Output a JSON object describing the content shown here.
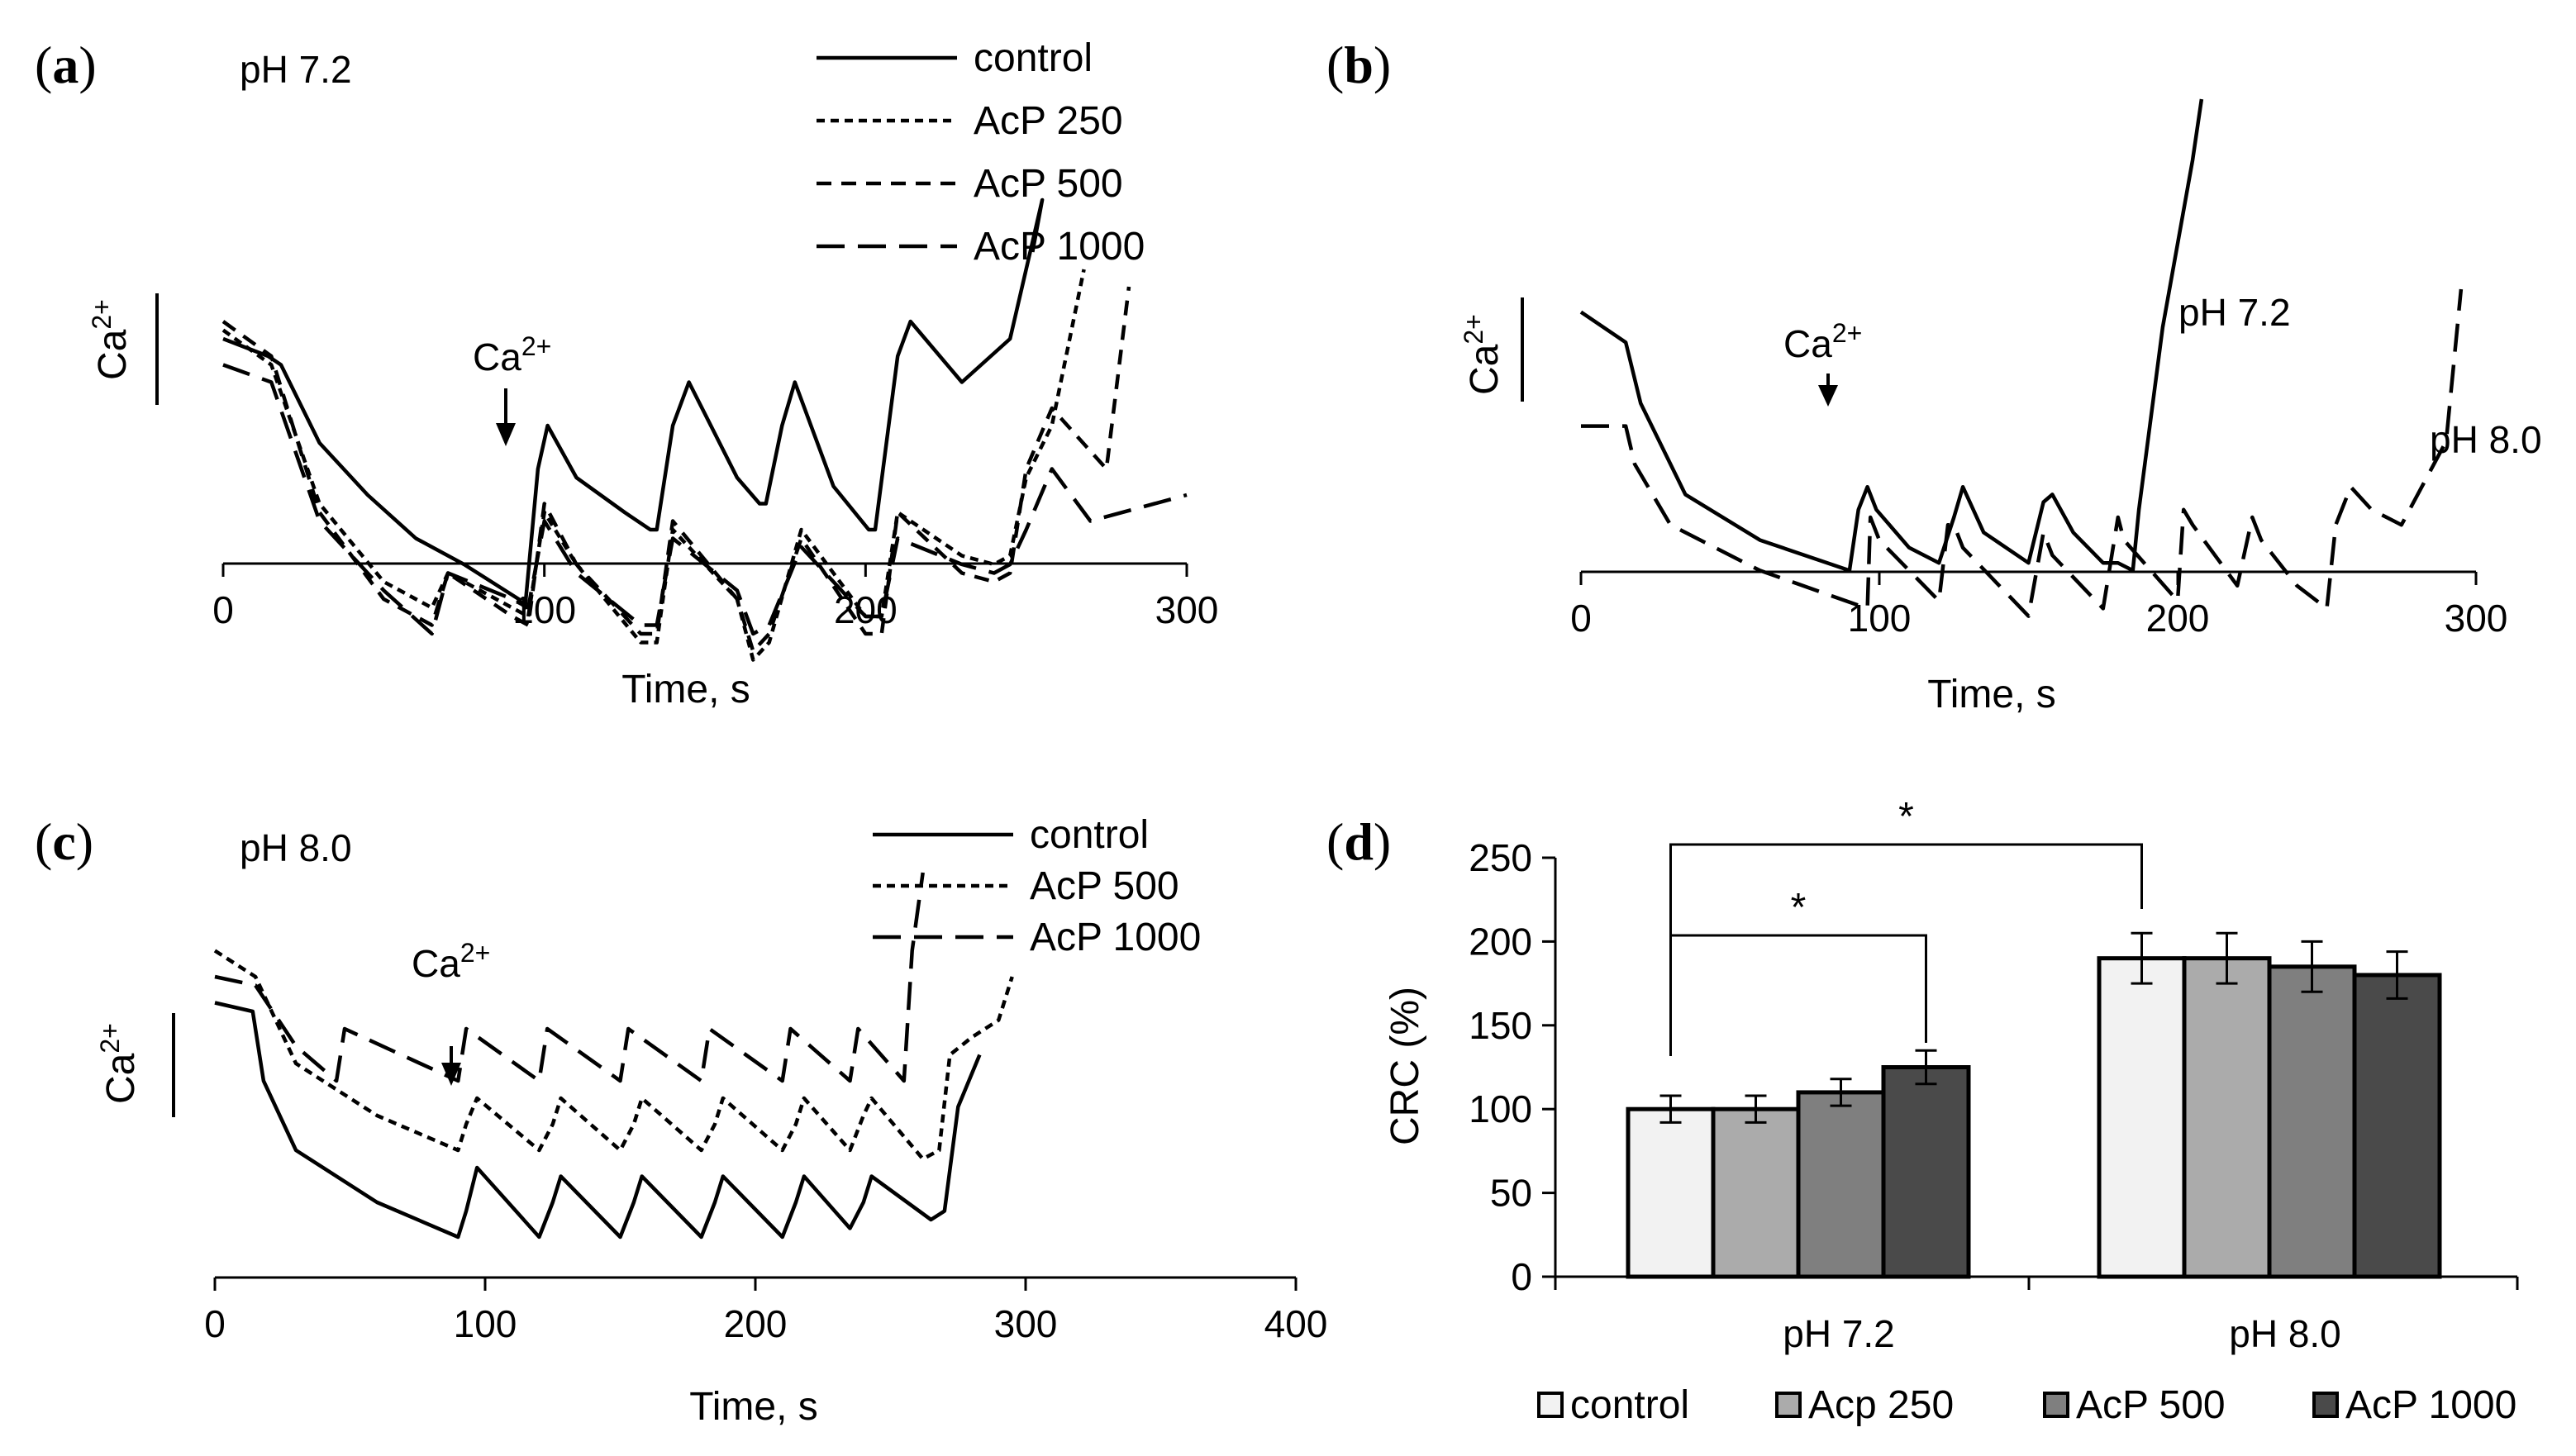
{
  "panels": {
    "a": {
      "label_open": "(",
      "label_letter": "a",
      "label_close": ")",
      "condition": "pH 7.2",
      "y_axis_label": "Ca",
      "y_axis_sup": "2+",
      "arrow_label": "Ca",
      "arrow_sup": "2+"
    },
    "b": {
      "label_open": "(",
      "label_letter": "b",
      "label_close": ")",
      "y_axis_label": "Ca",
      "y_axis_sup": "2+",
      "arrow_label": "Ca",
      "arrow_sup": "2+",
      "curve_label_1": "pH 7.2",
      "curve_label_2": "pH 8.0"
    },
    "c": {
      "label_open": "(",
      "label_letter": "c",
      "label_close": ")",
      "condition": "pH 8.0",
      "y_axis_label": "Ca",
      "y_axis_sup": "2+",
      "arrow_label": "Ca",
      "arrow_sup": "2+"
    },
    "d": {
      "label_open": "(",
      "label_letter": "d",
      "label_close": ")",
      "star_1": "*",
      "star_2": "*"
    }
  },
  "chart_data": [
    {
      "panel": "a",
      "type": "line",
      "xlabel": "Time, s",
      "ylabel": "Ca2+",
      "xlim": [
        0,
        300
      ],
      "xticks": [
        "0",
        "100",
        "200",
        "300"
      ],
      "legend": [
        "control",
        "AcP 250",
        "AcP 500",
        "AcP 1000"
      ],
      "legend_position": "top-right",
      "annotations": [
        "pH 7.2",
        "Ca2+ addition at ~90 s"
      ],
      "series": [
        {
          "name": "control",
          "style": "solid",
          "x": [
            0,
            14,
            18,
            30,
            45,
            60,
            75,
            92,
            94,
            98,
            101,
            110,
            125,
            133,
            135,
            140,
            145,
            160,
            167,
            169,
            174,
            178,
            190,
            201,
            203,
            210,
            214,
            230,
            245,
            255,
            252
          ],
          "y": [
            60,
            58,
            57,
            48,
            42,
            37,
            34,
            30,
            29,
            45,
            50,
            44,
            40,
            38,
            38,
            50,
            55,
            44,
            41,
            41,
            50,
            55,
            43,
            38,
            38,
            58,
            62,
            55,
            60,
            76,
            70
          ]
        },
        {
          "name": "AcP 250",
          "style": "short-dash",
          "x": [
            0,
            15,
            30,
            50,
            65,
            70,
            90,
            95,
            100,
            110,
            130,
            135,
            140,
            160,
            165,
            170,
            180,
            200,
            205,
            210,
            230,
            240,
            245,
            250,
            258,
            268
          ],
          "y": [
            61,
            57,
            41,
            32,
            29,
            33,
            29,
            28,
            40,
            34,
            25,
            25,
            38,
            30,
            23,
            25,
            38,
            28,
            28,
            40,
            35,
            34,
            35,
            44,
            50,
            68
          ]
        },
        {
          "name": "AcP 500",
          "style": "dash",
          "x": [
            0,
            15,
            30,
            50,
            65,
            70,
            90,
            95,
            100,
            110,
            130,
            135,
            140,
            160,
            165,
            170,
            180,
            200,
            205,
            210,
            230,
            240,
            245,
            250,
            258,
            275,
            282
          ],
          "y": [
            62,
            58,
            40,
            30,
            27,
            33,
            28,
            27,
            41,
            34,
            26,
            26,
            39,
            30,
            24,
            26,
            37,
            26,
            26,
            40,
            33,
            32,
            33,
            45,
            52,
            45,
            66
          ]
        },
        {
          "name": "AcP 1000",
          "style": "long-dash",
          "x": [
            0,
            15,
            30,
            50,
            65,
            70,
            90,
            95,
            100,
            110,
            130,
            135,
            140,
            160,
            165,
            170,
            180,
            200,
            205,
            210,
            230,
            240,
            245,
            250,
            258,
            270,
            300
          ],
          "y": [
            57,
            55,
            39,
            31,
            26,
            33,
            30,
            29,
            39,
            33,
            27,
            27,
            37,
            31,
            26,
            27,
            36,
            28,
            28,
            37,
            34,
            33,
            34,
            38,
            45,
            39,
            42
          ]
        }
      ]
    },
    {
      "panel": "b",
      "type": "line",
      "xlabel": "Time, s",
      "ylabel": "Ca2+",
      "xlim": [
        0,
        300
      ],
      "xticks": [
        "0",
        "100",
        "200",
        "300"
      ],
      "annotations": [
        "Ca2+ addition at ~87 s"
      ],
      "series": [
        {
          "label": "pH 7.2",
          "style": "solid",
          "x": [
            0,
            15,
            20,
            35,
            60,
            90,
            93,
            96,
            99,
            110,
            120,
            125,
            128,
            135,
            150,
            155,
            158,
            165,
            175,
            180,
            185,
            187,
            195,
            205,
            208
          ],
          "y": [
            72,
            68,
            60,
            48,
            42,
            38,
            46,
            49,
            46,
            41,
            39,
            45,
            49,
            43,
            39,
            47,
            48,
            43,
            39,
            39,
            38,
            46,
            70,
            92,
            100
          ]
        },
        {
          "label": "pH 8.0",
          "style": "long-dash",
          "x": [
            0,
            15,
            18,
            30,
            60,
            96,
            97,
            100,
            120,
            123,
            125,
            128,
            150,
            155,
            158,
            175,
            180,
            182,
            200,
            202,
            205,
            220,
            225,
            228,
            240,
            250,
            253,
            258,
            265,
            275,
            290,
            295
          ],
          "y": [
            57,
            57,
            52,
            44,
            38,
            33,
            45,
            42,
            34,
            44,
            44,
            41,
            32,
            43,
            40,
            33,
            45,
            42,
            34,
            46,
            44,
            36,
            45,
            42,
            36,
            33,
            44,
            49,
            46,
            44,
            55,
            75
          ]
        }
      ]
    },
    {
      "panel": "c",
      "type": "line",
      "xlabel": "Time, s",
      "ylabel": "Ca2+",
      "xlim": [
        0,
        400
      ],
      "xticks": [
        "0",
        "100",
        "200",
        "300",
        "400"
      ],
      "legend": [
        "control",
        "AcP 500",
        "AcP 1000"
      ],
      "legend_position": "top-right",
      "annotations": [
        "pH 8.0",
        "Ca2+ addition at ~90 s"
      ],
      "series": [
        {
          "name": "control",
          "style": "solid",
          "x": [
            0,
            14,
            18,
            30,
            60,
            90,
            93,
            97,
            120,
            125,
            128,
            150,
            155,
            158,
            180,
            185,
            188,
            210,
            215,
            218,
            235,
            240,
            243,
            265,
            270,
            275,
            283
          ],
          "y": [
            57,
            56,
            48,
            40,
            34,
            30,
            33,
            38,
            30,
            34,
            37,
            30,
            34,
            37,
            30,
            34,
            37,
            30,
            34,
            37,
            31,
            34,
            37,
            32,
            33,
            45,
            51
          ]
        },
        {
          "name": "AcP 500",
          "style": "short-dash",
          "x": [
            0,
            15,
            30,
            60,
            90,
            93,
            97,
            120,
            125,
            128,
            150,
            155,
            158,
            180,
            185,
            188,
            210,
            215,
            218,
            235,
            240,
            243,
            262,
            268,
            272,
            280,
            290,
            295
          ],
          "y": [
            63,
            60,
            50,
            44,
            40,
            43,
            46,
            40,
            43,
            46,
            40,
            43,
            46,
            40,
            43,
            46,
            40,
            43,
            46,
            40,
            44,
            46,
            39,
            40,
            51,
            53,
            55,
            60
          ]
        },
        {
          "name": "AcP 1000",
          "style": "long-dash",
          "x": [
            0,
            15,
            30,
            45,
            48,
            90,
            93,
            120,
            123,
            150,
            153,
            180,
            183,
            210,
            213,
            235,
            238,
            255,
            258,
            262
          ],
          "y": [
            60,
            59,
            52,
            48,
            54,
            48,
            54,
            48,
            54,
            48,
            54,
            48,
            54,
            48,
            54,
            48,
            54,
            48,
            63,
            72
          ]
        }
      ]
    },
    {
      "panel": "d",
      "type": "bar",
      "ylabel": "CRC (%)",
      "ylim": [
        0,
        250
      ],
      "yticks": [
        "0",
        "50",
        "100",
        "150",
        "200",
        "250"
      ],
      "categories": [
        "pH 7.2",
        "pH 8.0"
      ],
      "legend_position": "bottom",
      "series": [
        {
          "name": "control",
          "color": "#f2f2f2",
          "values": [
            100,
            190
          ],
          "errors": [
            8,
            15
          ]
        },
        {
          "name": "Acp 250",
          "color": "#ababab",
          "values": [
            100,
            190
          ],
          "errors": [
            8,
            15
          ]
        },
        {
          "name": "AcP 500",
          "color": "#7f7f7f",
          "values": [
            110,
            185
          ],
          "errors": [
            8,
            15
          ]
        },
        {
          "name": "AcP 1000",
          "color": "#4a4a4a",
          "values": [
            125,
            180
          ],
          "errors": [
            10,
            14
          ]
        }
      ],
      "significance": [
        {
          "from": "pH 7.2 control",
          "to": "pH 7.2 AcP 1000",
          "label": "*"
        },
        {
          "from": "pH 7.2 control",
          "to": "pH 8.0 control",
          "label": "*"
        }
      ]
    }
  ]
}
